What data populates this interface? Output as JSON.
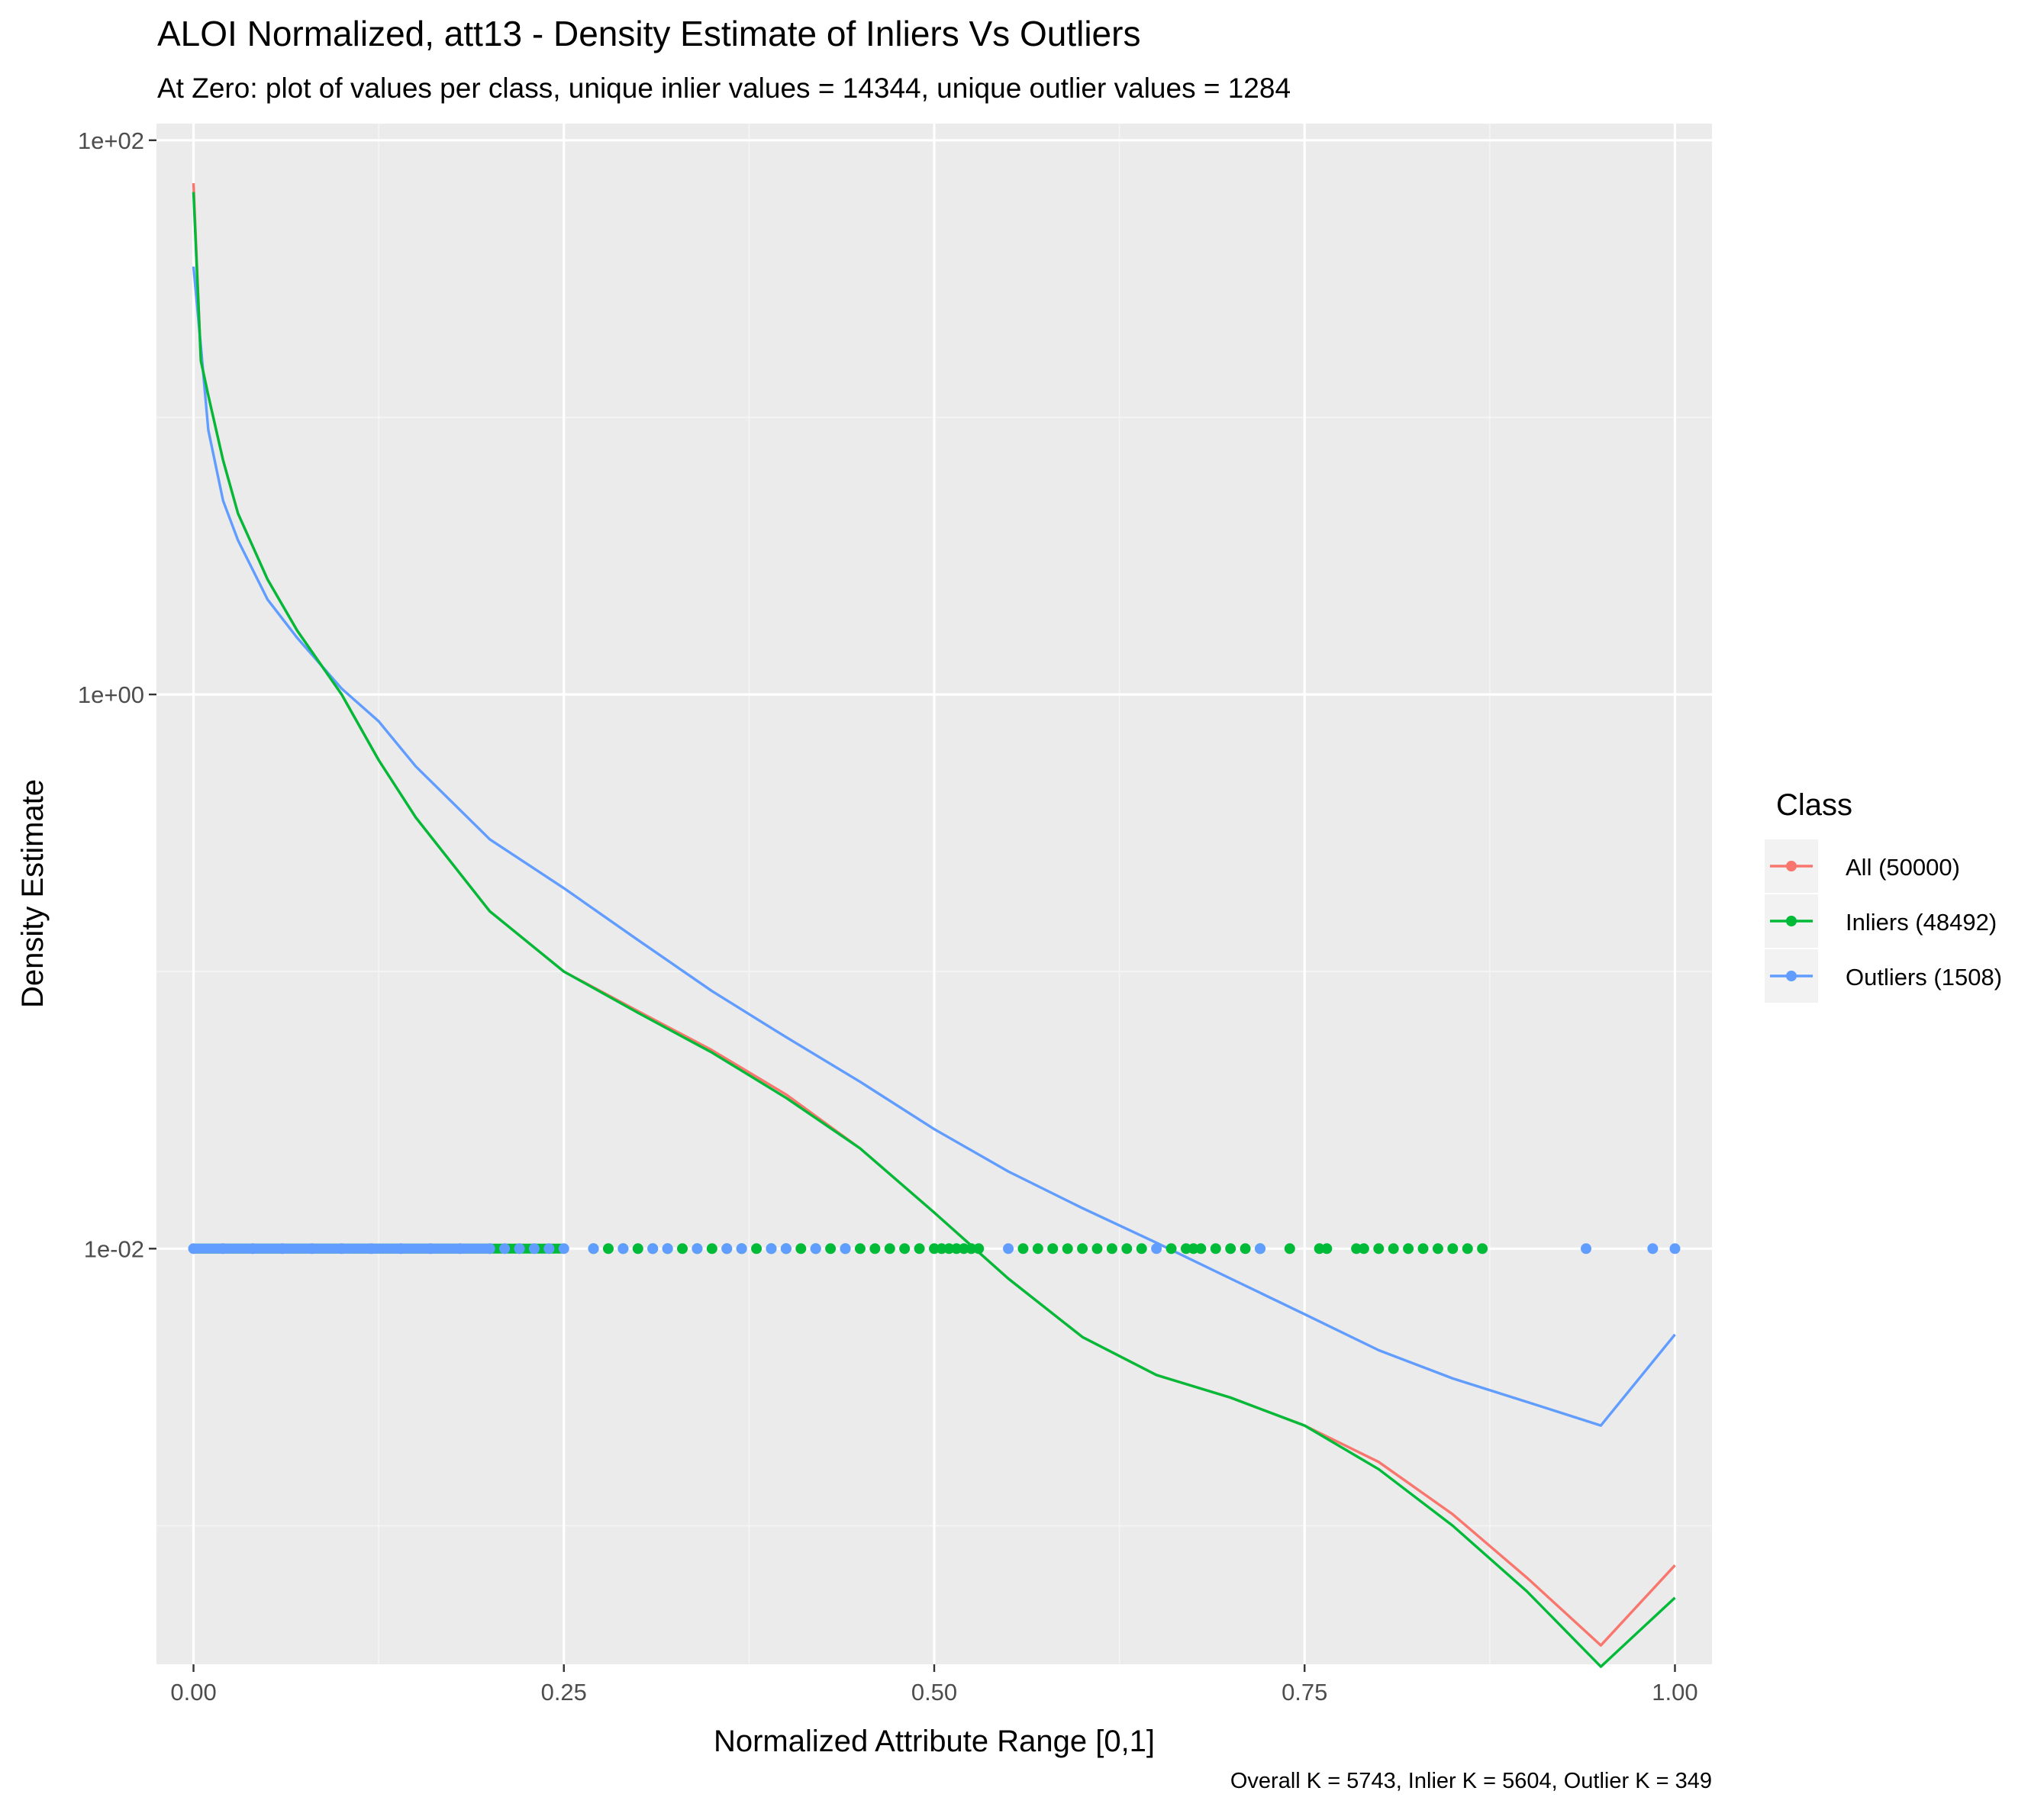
{
  "chart_data": {
    "type": "line",
    "title": "ALOI Normalized, att13 - Density Estimate of Inliers Vs Outliers",
    "subtitle": "At Zero: plot of values per class, unique inlier values = 14344, unique outlier values = 1284",
    "xlabel": "Normalized Attribute Range [0,1]",
    "ylabel": "Density Estimate",
    "caption": "Overall K = 5743, Inlier K = 5604, Outlier K = 349",
    "xlim": [
      -0.025,
      1.025
    ],
    "ylim_log10": [
      -3.5,
      2.06
    ],
    "y_scale": "log10",
    "grid": true,
    "x_ticks": [
      0,
      0.25,
      0.5,
      0.75,
      1
    ],
    "x_tick_labels": [
      "0.00",
      "0.25",
      "0.50",
      "0.75",
      "1.00"
    ],
    "y_ticks": [
      100,
      1,
      0.01
    ],
    "y_tick_labels": [
      "1e+02",
      "1e+00",
      "1e-02"
    ],
    "legend": {
      "title": "Class",
      "position": "right",
      "entries": [
        "All (50000)",
        "Inliers (48492)",
        "Outliers (1508)"
      ]
    },
    "colors": {
      "All": "#F8766D",
      "Inliers": "#00BA38",
      "Outliers": "#619CFF"
    },
    "series": [
      {
        "name": "All (50000)",
        "key": "All",
        "x": [
          0.0,
          0.005,
          0.01,
          0.02,
          0.03,
          0.05,
          0.07,
          0.1,
          0.125,
          0.15,
          0.2,
          0.25,
          0.3,
          0.35,
          0.4,
          0.45,
          0.5,
          0.55,
          0.6,
          0.65,
          0.7,
          0.75,
          0.8,
          0.85,
          0.9,
          0.95,
          1.0
        ],
        "y": [
          70,
          16,
          12,
          7,
          4.5,
          2.6,
          1.7,
          1.0,
          0.58,
          0.36,
          0.165,
          0.1,
          0.072,
          0.052,
          0.036,
          0.023,
          0.0135,
          0.0078,
          0.0048,
          0.0035,
          0.0029,
          0.0023,
          0.0017,
          0.0011,
          0.00065,
          0.00037,
          0.00072
        ]
      },
      {
        "name": "Inliers (48492)",
        "key": "Inliers",
        "x": [
          0.0,
          0.005,
          0.01,
          0.02,
          0.03,
          0.05,
          0.07,
          0.1,
          0.125,
          0.15,
          0.2,
          0.25,
          0.3,
          0.35,
          0.4,
          0.45,
          0.5,
          0.55,
          0.6,
          0.65,
          0.7,
          0.75,
          0.8,
          0.85,
          0.9,
          0.95,
          1.0
        ],
        "y": [
          65,
          16,
          12,
          7,
          4.5,
          2.6,
          1.7,
          1.0,
          0.58,
          0.36,
          0.165,
          0.1,
          0.071,
          0.051,
          0.035,
          0.023,
          0.0135,
          0.0078,
          0.0048,
          0.0035,
          0.0029,
          0.0023,
          0.0016,
          0.001,
          0.00058,
          0.00031,
          0.00055
        ]
      },
      {
        "name": "Outliers (1508)",
        "key": "Outliers",
        "x": [
          0.0,
          0.005,
          0.01,
          0.02,
          0.03,
          0.05,
          0.07,
          0.1,
          0.125,
          0.15,
          0.2,
          0.25,
          0.3,
          0.35,
          0.4,
          0.45,
          0.5,
          0.55,
          0.6,
          0.65,
          0.7,
          0.75,
          0.8,
          0.85,
          0.9,
          0.95,
          1.0
        ],
        "y": [
          35,
          18,
          9,
          5,
          3.6,
          2.2,
          1.6,
          1.05,
          0.8,
          0.55,
          0.3,
          0.2,
          0.13,
          0.085,
          0.058,
          0.04,
          0.027,
          0.019,
          0.014,
          0.0105,
          0.0078,
          0.0058,
          0.0043,
          0.0034,
          0.0028,
          0.0023,
          0.0049
        ]
      }
    ],
    "zero_points": {
      "y": 0.01,
      "inlier_x": [
        0.27,
        0.28,
        0.29,
        0.3,
        0.31,
        0.32,
        0.33,
        0.34,
        0.35,
        0.36,
        0.37,
        0.38,
        0.39,
        0.4,
        0.41,
        0.42,
        0.43,
        0.44,
        0.45,
        0.46,
        0.47,
        0.48,
        0.49,
        0.5,
        0.505,
        0.51,
        0.515,
        0.52,
        0.525,
        0.53,
        0.56,
        0.57,
        0.58,
        0.59,
        0.6,
        0.61,
        0.62,
        0.63,
        0.64,
        0.66,
        0.67,
        0.675,
        0.68,
        0.69,
        0.7,
        0.71,
        0.72,
        0.74,
        0.76,
        0.765,
        0.785,
        0.79,
        0.8,
        0.81,
        0.82,
        0.83,
        0.84,
        0.85,
        0.86,
        0.87
      ],
      "outlier_x": [
        0.0,
        0.02,
        0.04,
        0.06,
        0.08,
        0.1,
        0.12,
        0.14,
        0.16,
        0.18,
        0.2,
        0.21,
        0.22,
        0.23,
        0.24,
        0.25,
        0.27,
        0.29,
        0.31,
        0.32,
        0.34,
        0.36,
        0.37,
        0.39,
        0.4,
        0.42,
        0.44,
        0.55,
        0.65,
        0.72,
        0.94,
        0.985,
        1.0
      ]
    }
  }
}
